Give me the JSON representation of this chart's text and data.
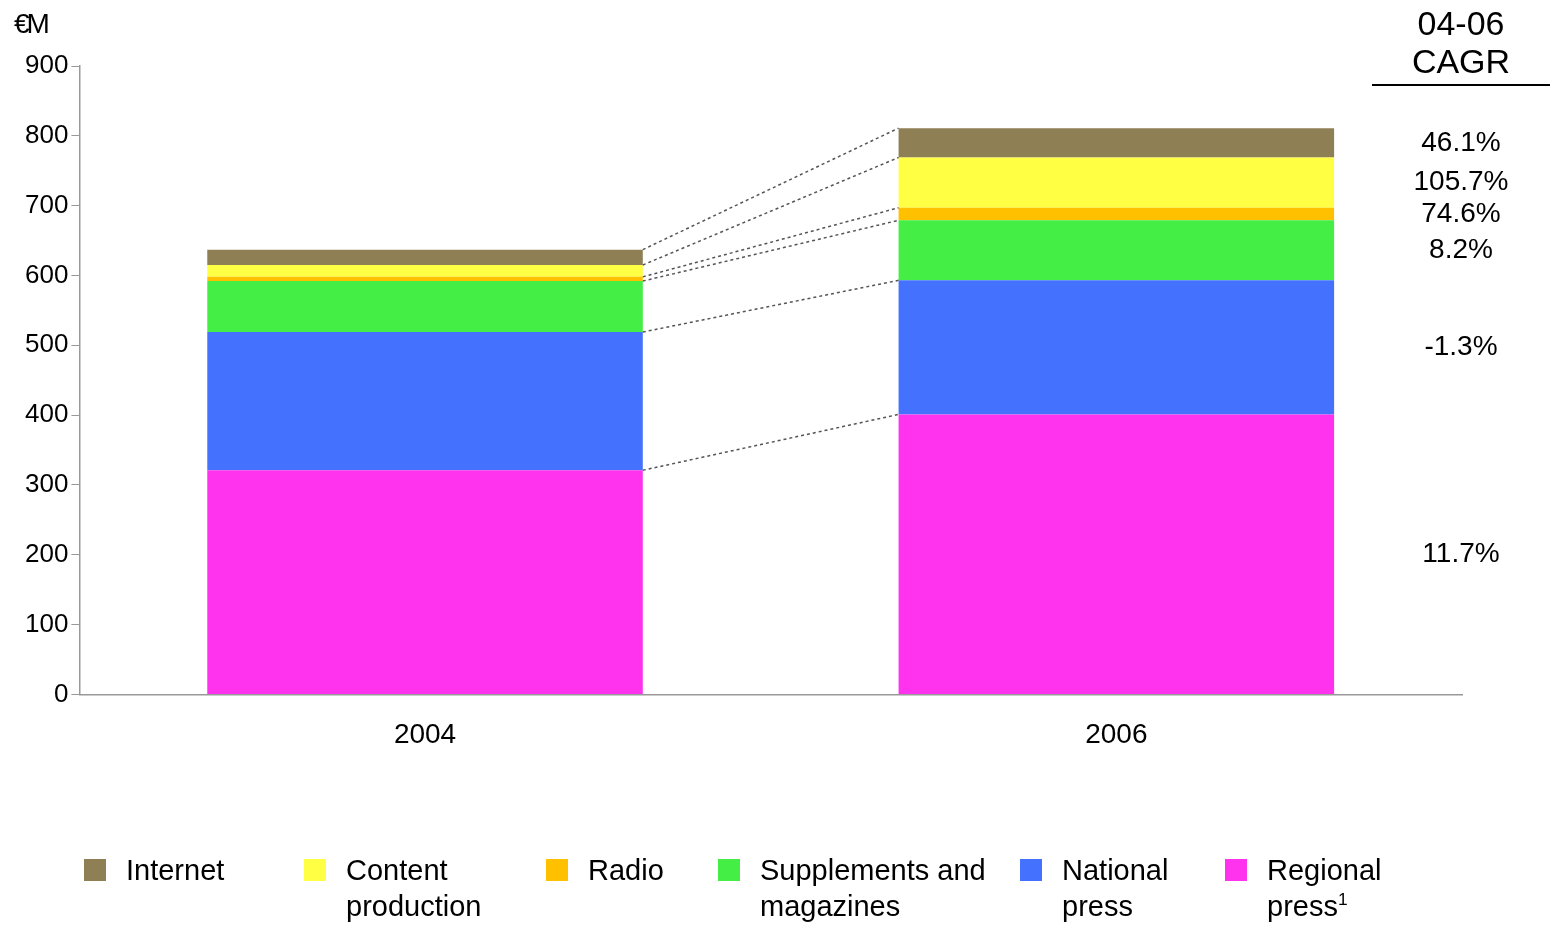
{
  "chart_data": {
    "type": "bar",
    "stacked": true,
    "ylabel": "€M",
    "categories": [
      "2004",
      "2006"
    ],
    "series": [
      {
        "name": "Regional press$^{1}$",
        "color": "#ff33ee",
        "values": [
          321,
          401
        ]
      },
      {
        "name": "National press",
        "color": "#4472ff",
        "values": [
          198,
          192
        ]
      },
      {
        "name": "Supplements and magazines",
        "color": "#44ee44",
        "values": [
          73,
          86
        ]
      },
      {
        "name": "Radio",
        "color": "#ffc000",
        "values": [
          6,
          18
        ]
      },
      {
        "name": "Content production",
        "color": "#ffff44",
        "values": [
          17,
          72
        ]
      },
      {
        "name": "Internet",
        "color": "#8f7f55",
        "values": [
          22,
          42
        ]
      }
    ],
    "ylim": [
      0,
      900
    ],
    "yticks": [
      0,
      100,
      200,
      300,
      400,
      500,
      600,
      700,
      800,
      900
    ],
    "grid": false,
    "legend": "bottom",
    "annotations": [
      "04-06 CAGR",
      "46.1%",
      "105.7%",
      "74.6%",
      "8.2%",
      "-1.3%",
      "11.7%"
    ]
  }
}
